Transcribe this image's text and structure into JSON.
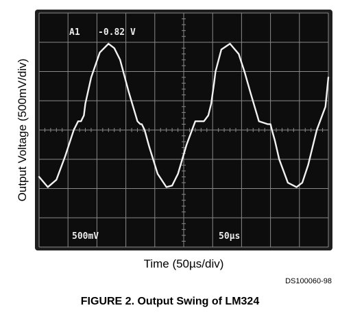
{
  "caption": "FIGURE 2. Output Swing of LM324",
  "doc_id": "DS100060-98",
  "colors": {
    "screen": "#0d0d0d",
    "bezel": "#1e1e1e",
    "graticule": "#8a8a8a",
    "trace": "#f2f2f2",
    "osd_text": "#ececec"
  },
  "chart_data": {
    "type": "line",
    "xlabel": "Time (50µs/div)",
    "ylabel": "Output Voltage (500mV/div)",
    "x_unit": "div",
    "y_unit": "div",
    "xlim": [
      0,
      10
    ],
    "ylim": [
      -4,
      4
    ],
    "grid": true,
    "osd": {
      "channel": "A1",
      "readout": "-0.82 V",
      "volts_per_div": "500mV",
      "time_per_div": "50µs"
    },
    "series": [
      {
        "x": [
          0,
          0.3,
          0.6,
          0.9,
          1.2,
          1.35,
          1.45,
          1.55,
          1.6,
          1.8,
          2.1,
          2.4,
          2.6,
          2.8,
          3.1,
          3.4,
          3.5,
          3.55,
          3.65,
          3.8,
          4.1,
          4.4,
          4.6,
          4.8,
          5.1,
          5.4,
          5.7,
          5.85,
          5.95,
          6.05,
          6.1,
          6.3,
          6.6,
          6.9,
          7.1,
          7.3,
          7.6,
          7.9,
          8.0,
          8.05,
          8.15,
          8.3,
          8.6,
          8.9,
          9.1,
          9.3,
          9.6,
          9.9,
          10
        ],
        "y": [
          -1.6,
          -1.95,
          -1.7,
          -0.9,
          0,
          0.3,
          0.3,
          0.5,
          0.9,
          1.8,
          2.65,
          2.95,
          2.8,
          2.4,
          1.3,
          0.3,
          0.2,
          0.2,
          0,
          -0.55,
          -1.5,
          -1.95,
          -1.9,
          -1.5,
          -0.5,
          0.3,
          0.3,
          0.5,
          0.9,
          1.6,
          2.0,
          2.75,
          2.95,
          2.6,
          2.0,
          1.3,
          0.3,
          0.2,
          0.2,
          0,
          -0.35,
          -1.0,
          -1.8,
          -1.95,
          -1.8,
          -1.2,
          0,
          0.8,
          1.8
        ]
      }
    ]
  }
}
